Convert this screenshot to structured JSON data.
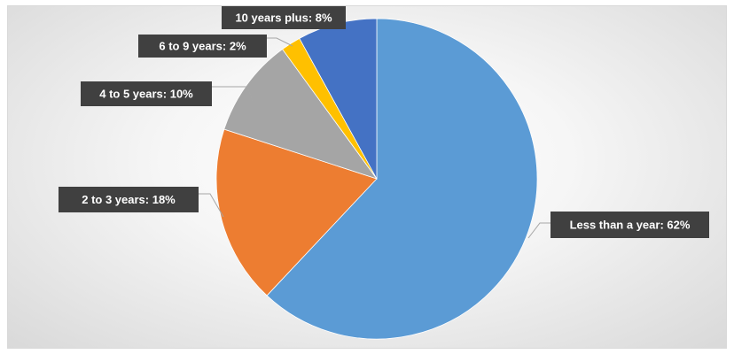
{
  "chart_data": {
    "type": "pie",
    "start_angle_deg": 0,
    "direction": "clockwise",
    "slices": [
      {
        "label": "Less than a year",
        "value": 62,
        "text": "Less than a year: 62%",
        "color": "#5b9bd5"
      },
      {
        "label": "2 to 3 years",
        "value": 18,
        "text": "2 to 3 years: 18%",
        "color": "#ed7d31"
      },
      {
        "label": "4 to 5 years",
        "value": 10,
        "text": "4 to 5 years: 10%",
        "color": "#a5a5a5"
      },
      {
        "label": "6 to 9 years",
        "value": 2,
        "text": "6 to 9 years: 2%",
        "color": "#ffc000"
      },
      {
        "label": "10 years plus",
        "value": 8,
        "text": "10 years plus: 8%",
        "color": "#4472c4"
      }
    ],
    "label_style": {
      "background": "#404040",
      "text_color": "#ffffff",
      "leader_color": "#a6a6a6"
    },
    "legend": "none",
    "title": ""
  }
}
